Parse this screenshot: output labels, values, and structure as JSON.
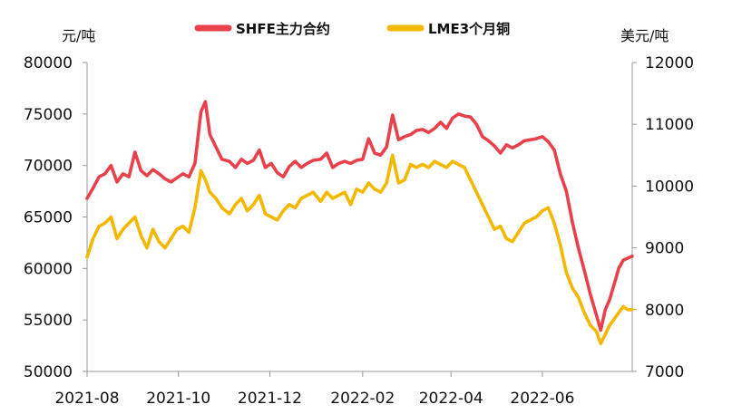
{
  "chart_data": {
    "type": "line",
    "title": "",
    "left_axis": {
      "unit": "元/吨",
      "ylim": [
        50000,
        80000
      ],
      "ticks": [
        "50000",
        "55000",
        "60000",
        "65000",
        "70000",
        "75000",
        "80000"
      ]
    },
    "right_axis": {
      "unit": "美元/吨",
      "ylim": [
        7000,
        12000
      ],
      "ticks": [
        "7000",
        "8000",
        "9000",
        "10000",
        "11000",
        "12000"
      ]
    },
    "x_ticks": [
      "2021-08",
      "2021-10",
      "2021-12",
      "2022-02",
      "2022-04",
      "2022-06"
    ],
    "x_range": [
      "2021-08-01",
      "2022-07-31"
    ],
    "grid": false,
    "legend_position": "top",
    "series": [
      {
        "name": "SHFE主力合约",
        "axis": "left",
        "color": "#e8414b",
        "points": [
          [
            "2021-08-01",
            66800
          ],
          [
            "2021-08-05",
            67800
          ],
          [
            "2021-08-09",
            68900
          ],
          [
            "2021-08-13",
            69200
          ],
          [
            "2021-08-17",
            70000
          ],
          [
            "2021-08-21",
            68400
          ],
          [
            "2021-08-25",
            69200
          ],
          [
            "2021-08-29",
            68900
          ],
          [
            "2021-09-02",
            71300
          ],
          [
            "2021-09-06",
            69500
          ],
          [
            "2021-09-10",
            69000
          ],
          [
            "2021-09-14",
            69600
          ],
          [
            "2021-09-18",
            69200
          ],
          [
            "2021-09-22",
            68700
          ],
          [
            "2021-09-26",
            68400
          ],
          [
            "2021-09-30",
            68800
          ],
          [
            "2021-10-04",
            69200
          ],
          [
            "2021-10-08",
            68900
          ],
          [
            "2021-10-12",
            70200
          ],
          [
            "2021-10-16",
            75200
          ],
          [
            "2021-10-19",
            76200
          ],
          [
            "2021-10-22",
            73000
          ],
          [
            "2021-10-26",
            71800
          ],
          [
            "2021-10-30",
            70600
          ],
          [
            "2021-11-04",
            70400
          ],
          [
            "2021-11-08",
            69800
          ],
          [
            "2021-11-12",
            70600
          ],
          [
            "2021-11-16",
            70200
          ],
          [
            "2021-11-20",
            70500
          ],
          [
            "2021-11-24",
            71500
          ],
          [
            "2021-11-28",
            69800
          ],
          [
            "2021-12-02",
            70200
          ],
          [
            "2021-12-06",
            69300
          ],
          [
            "2021-12-10",
            68900
          ],
          [
            "2021-12-14",
            69900
          ],
          [
            "2021-12-18",
            70400
          ],
          [
            "2021-12-22",
            69800
          ],
          [
            "2021-12-26",
            70200
          ],
          [
            "2021-12-30",
            70500
          ],
          [
            "2022-01-04",
            70600
          ],
          [
            "2022-01-08",
            71200
          ],
          [
            "2022-01-12",
            69800
          ],
          [
            "2022-01-16",
            70200
          ],
          [
            "2022-01-20",
            70400
          ],
          [
            "2022-01-24",
            70200
          ],
          [
            "2022-01-28",
            70500
          ],
          [
            "2022-02-01",
            70600
          ],
          [
            "2022-02-05",
            72600
          ],
          [
            "2022-02-09",
            71200
          ],
          [
            "2022-02-13",
            71000
          ],
          [
            "2022-02-17",
            71800
          ],
          [
            "2022-02-21",
            74900
          ],
          [
            "2022-02-25",
            72500
          ],
          [
            "2022-03-01",
            72800
          ],
          [
            "2022-03-05",
            73000
          ],
          [
            "2022-03-09",
            73400
          ],
          [
            "2022-03-13",
            73500
          ],
          [
            "2022-03-17",
            73200
          ],
          [
            "2022-03-21",
            73600
          ],
          [
            "2022-03-25",
            74200
          ],
          [
            "2022-03-29",
            73600
          ],
          [
            "2022-04-02",
            74600
          ],
          [
            "2022-04-06",
            75000
          ],
          [
            "2022-04-10",
            74800
          ],
          [
            "2022-04-14",
            74700
          ],
          [
            "2022-04-18",
            74000
          ],
          [
            "2022-04-22",
            72800
          ],
          [
            "2022-04-26",
            72400
          ],
          [
            "2022-04-30",
            71900
          ],
          [
            "2022-05-04",
            71200
          ],
          [
            "2022-05-08",
            72000
          ],
          [
            "2022-05-12",
            71700
          ],
          [
            "2022-05-16",
            72000
          ],
          [
            "2022-05-20",
            72400
          ],
          [
            "2022-05-24",
            72500
          ],
          [
            "2022-05-28",
            72600
          ],
          [
            "2022-06-01",
            72800
          ],
          [
            "2022-06-05",
            72300
          ],
          [
            "2022-06-09",
            71500
          ],
          [
            "2022-06-13",
            69200
          ],
          [
            "2022-06-17",
            67500
          ],
          [
            "2022-06-21",
            64500
          ],
          [
            "2022-06-25",
            62000
          ],
          [
            "2022-06-29",
            59800
          ],
          [
            "2022-07-03",
            57500
          ],
          [
            "2022-07-07",
            55500
          ],
          [
            "2022-07-10",
            54000
          ],
          [
            "2022-07-13",
            56000
          ],
          [
            "2022-07-16",
            57000
          ],
          [
            "2022-07-19",
            58500
          ],
          [
            "2022-07-22",
            60000
          ],
          [
            "2022-07-25",
            60800
          ],
          [
            "2022-07-28",
            61000
          ],
          [
            "2022-07-31",
            61200
          ]
        ]
      },
      {
        "name": "LME3个月铜",
        "axis": "right",
        "color": "#f5b800",
        "points": [
          [
            "2021-08-01",
            8850
          ],
          [
            "2021-08-05",
            9150
          ],
          [
            "2021-08-09",
            9350
          ],
          [
            "2021-08-13",
            9400
          ],
          [
            "2021-08-17",
            9500
          ],
          [
            "2021-08-21",
            9150
          ],
          [
            "2021-08-25",
            9300
          ],
          [
            "2021-08-29",
            9400
          ],
          [
            "2021-09-02",
            9500
          ],
          [
            "2021-09-06",
            9200
          ],
          [
            "2021-09-10",
            9000
          ],
          [
            "2021-09-14",
            9300
          ],
          [
            "2021-09-18",
            9100
          ],
          [
            "2021-09-22",
            9000
          ],
          [
            "2021-09-26",
            9150
          ],
          [
            "2021-09-30",
            9300
          ],
          [
            "2021-10-04",
            9350
          ],
          [
            "2021-10-08",
            9250
          ],
          [
            "2021-10-12",
            9650
          ],
          [
            "2021-10-16",
            10250
          ],
          [
            "2021-10-19",
            10100
          ],
          [
            "2021-10-22",
            9900
          ],
          [
            "2021-10-26",
            9800
          ],
          [
            "2021-10-30",
            9650
          ],
          [
            "2021-11-04",
            9550
          ],
          [
            "2021-11-08",
            9700
          ],
          [
            "2021-11-12",
            9800
          ],
          [
            "2021-11-16",
            9600
          ],
          [
            "2021-11-20",
            9700
          ],
          [
            "2021-11-24",
            9850
          ],
          [
            "2021-11-28",
            9550
          ],
          [
            "2021-12-02",
            9500
          ],
          [
            "2021-12-06",
            9450
          ],
          [
            "2021-12-10",
            9600
          ],
          [
            "2021-12-14",
            9700
          ],
          [
            "2021-12-18",
            9650
          ],
          [
            "2021-12-22",
            9800
          ],
          [
            "2021-12-26",
            9850
          ],
          [
            "2021-12-30",
            9900
          ],
          [
            "2022-01-04",
            9750
          ],
          [
            "2022-01-08",
            9900
          ],
          [
            "2022-01-12",
            9800
          ],
          [
            "2022-01-16",
            9850
          ],
          [
            "2022-01-20",
            9900
          ],
          [
            "2022-01-24",
            9700
          ],
          [
            "2022-01-28",
            9950
          ],
          [
            "2022-02-01",
            9900
          ],
          [
            "2022-02-05",
            10050
          ],
          [
            "2022-02-09",
            9950
          ],
          [
            "2022-02-13",
            9900
          ],
          [
            "2022-02-17",
            10050
          ],
          [
            "2022-02-21",
            10500
          ],
          [
            "2022-02-25",
            10050
          ],
          [
            "2022-03-01",
            10100
          ],
          [
            "2022-03-05",
            10350
          ],
          [
            "2022-03-09",
            10300
          ],
          [
            "2022-03-13",
            10350
          ],
          [
            "2022-03-17",
            10300
          ],
          [
            "2022-03-21",
            10400
          ],
          [
            "2022-03-25",
            10350
          ],
          [
            "2022-03-29",
            10300
          ],
          [
            "2022-04-02",
            10400
          ],
          [
            "2022-04-06",
            10350
          ],
          [
            "2022-04-10",
            10300
          ],
          [
            "2022-04-14",
            10100
          ],
          [
            "2022-04-18",
            9900
          ],
          [
            "2022-04-22",
            9700
          ],
          [
            "2022-04-26",
            9500
          ],
          [
            "2022-04-30",
            9300
          ],
          [
            "2022-05-04",
            9350
          ],
          [
            "2022-05-08",
            9150
          ],
          [
            "2022-05-12",
            9100
          ],
          [
            "2022-05-16",
            9250
          ],
          [
            "2022-05-20",
            9400
          ],
          [
            "2022-05-24",
            9450
          ],
          [
            "2022-05-28",
            9500
          ],
          [
            "2022-06-01",
            9600
          ],
          [
            "2022-06-05",
            9650
          ],
          [
            "2022-06-09",
            9400
          ],
          [
            "2022-06-13",
            9050
          ],
          [
            "2022-06-17",
            8600
          ],
          [
            "2022-06-21",
            8350
          ],
          [
            "2022-06-25",
            8200
          ],
          [
            "2022-06-29",
            7950
          ],
          [
            "2022-07-03",
            7750
          ],
          [
            "2022-07-07",
            7650
          ],
          [
            "2022-07-10",
            7450
          ],
          [
            "2022-07-13",
            7600
          ],
          [
            "2022-07-16",
            7750
          ],
          [
            "2022-07-19",
            7850
          ],
          [
            "2022-07-22",
            7950
          ],
          [
            "2022-07-25",
            8050
          ],
          [
            "2022-07-28",
            8000
          ],
          [
            "2022-07-31",
            8000
          ]
        ]
      }
    ]
  }
}
